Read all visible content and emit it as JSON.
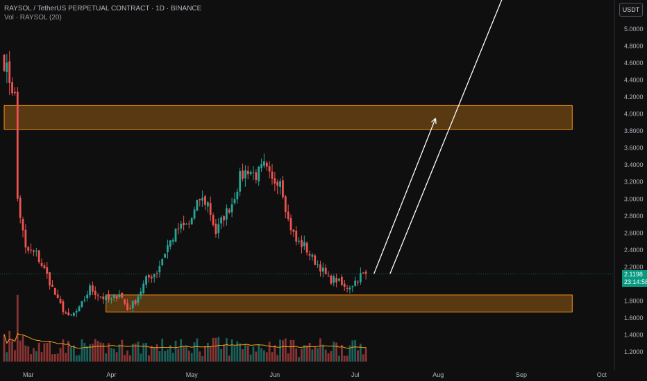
{
  "header": {
    "title": "RAYSOL / TetherUS PERPETUAL CONTRACT · 1D · BINANCE",
    "volume_label": "Vol · RAYSOL (20)"
  },
  "currency": "USDT",
  "last_price": {
    "value": "2.1198",
    "countdown": "23:14:58"
  },
  "chart_data": {
    "type": "candlestick",
    "title": "RAYSOL / TetherUS PERPETUAL CONTRACT · 1D · BINANCE",
    "y_ticks": [
      "5.0000",
      "4.8000",
      "4.6000",
      "4.4000",
      "4.2000",
      "4.0000",
      "3.8000",
      "3.6000",
      "3.4000",
      "3.2000",
      "3.0000",
      "2.8000",
      "2.6000",
      "2.4000",
      "2.2000",
      "1.8000",
      "1.6000",
      "1.4000",
      "1.2000"
    ],
    "x_ticks": [
      "Mar",
      "Apr",
      "May",
      "Jun",
      "Jul",
      "Aug",
      "Sep",
      "Oct"
    ],
    "ylim": [
      1.1,
      5.2
    ],
    "grid": false,
    "colors": {
      "up": "#26a69a",
      "down": "#ef5350",
      "zone": "#f7931a",
      "arrow": "#ffffff",
      "volume_ma": "#f7a21b"
    },
    "zones": [
      {
        "label": "resistance",
        "low": 3.82,
        "high": 4.1,
        "start": "2025-02-20",
        "end": "2025-09-20"
      },
      {
        "label": "support",
        "low": 1.67,
        "high": 1.87,
        "start": "2025-03-30",
        "end": "2025-09-20"
      }
    ],
    "arrows": [
      {
        "from": {
          "date": "2025-07-08",
          "price": 2.12
        },
        "to": {
          "date": "2025-07-31",
          "price": 3.95
        }
      },
      {
        "from": {
          "date": "2025-07-14",
          "price": 2.12
        },
        "to": {
          "date": "2025-08-28",
          "price": 5.6
        }
      }
    ],
    "close_path": [
      [
        "2025-02-20",
        4.62
      ],
      [
        "2025-02-24",
        4.2
      ],
      [
        "2025-02-25",
        3.0
      ],
      [
        "2025-02-28",
        2.4
      ],
      [
        "2025-03-04",
        2.35
      ],
      [
        "2025-03-08",
        2.1
      ],
      [
        "2025-03-12",
        1.8
      ],
      [
        "2025-03-16",
        1.6
      ],
      [
        "2025-03-20",
        1.7
      ],
      [
        "2025-03-24",
        1.95
      ],
      [
        "2025-03-28",
        1.85
      ],
      [
        "2025-04-01",
        1.8
      ],
      [
        "2025-04-04",
        1.9
      ],
      [
        "2025-04-07",
        1.7
      ],
      [
        "2025-04-10",
        1.8
      ],
      [
        "2025-04-14",
        2.05
      ],
      [
        "2025-04-18",
        2.15
      ],
      [
        "2025-04-22",
        2.45
      ],
      [
        "2025-04-26",
        2.65
      ],
      [
        "2025-04-30",
        2.7
      ],
      [
        "2025-05-04",
        3.0
      ],
      [
        "2025-05-07",
        2.95
      ],
      [
        "2025-05-10",
        2.6
      ],
      [
        "2025-05-13",
        2.8
      ],
      [
        "2025-05-16",
        2.95
      ],
      [
        "2025-05-19",
        3.25
      ],
      [
        "2025-05-22",
        3.35
      ],
      [
        "2025-05-25",
        3.28
      ],
      [
        "2025-05-28",
        3.38
      ],
      [
        "2025-05-31",
        3.2
      ],
      [
        "2025-06-03",
        3.25
      ],
      [
        "2025-06-06",
        2.75
      ],
      [
        "2025-06-09",
        2.5
      ],
      [
        "2025-06-12",
        2.45
      ],
      [
        "2025-06-15",
        2.3
      ],
      [
        "2025-06-18",
        2.2
      ],
      [
        "2025-06-21",
        2.05
      ],
      [
        "2025-06-24",
        2.05
      ],
      [
        "2025-06-27",
        1.95
      ],
      [
        "2025-06-30",
        2.0
      ],
      [
        "2025-07-03",
        2.1
      ],
      [
        "2025-07-05",
        2.12
      ]
    ]
  }
}
